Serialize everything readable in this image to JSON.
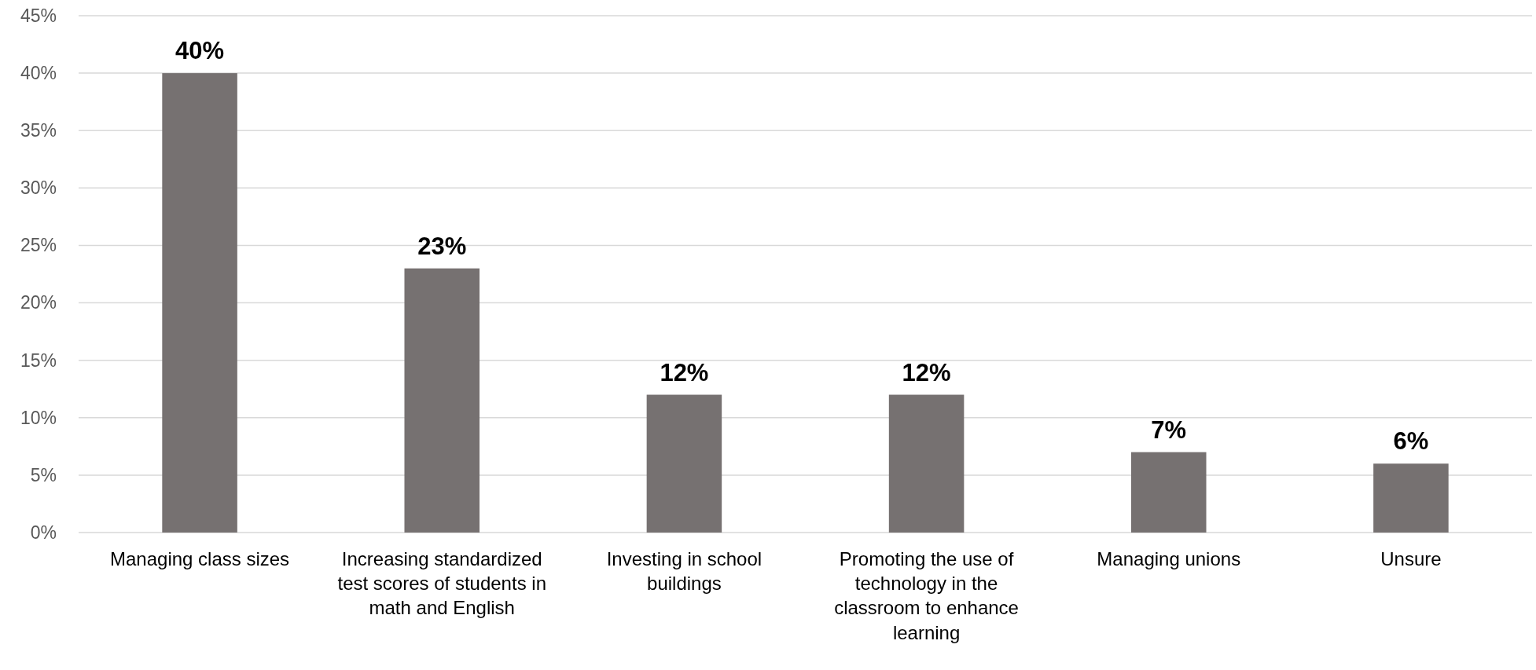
{
  "chart_data": {
    "type": "bar",
    "categories": [
      "Managing class sizes",
      "Increasing standardized test scores of students in math and English",
      "Investing in school buildings",
      "Promoting the use of technology in the classroom to enhance learning",
      "Managing unions",
      "Unsure"
    ],
    "values": [
      40,
      23,
      12,
      12,
      7,
      6
    ],
    "color": "#767171",
    "value_labels": [
      "40%",
      "23%",
      "12%",
      "12%",
      "7%",
      "6%"
    ],
    "ylim": [
      0,
      45
    ],
    "yticks": [
      {
        "value": 0,
        "label": "0%"
      },
      {
        "value": 5,
        "label": "5%"
      },
      {
        "value": 10,
        "label": "10%"
      },
      {
        "value": 15,
        "label": "15%"
      },
      {
        "value": 20,
        "label": "20%"
      },
      {
        "value": 25,
        "label": "25%"
      },
      {
        "value": 30,
        "label": "30%"
      },
      {
        "value": 35,
        "label": "35%"
      },
      {
        "value": 40,
        "label": "40%"
      },
      {
        "value": 45,
        "label": "45%"
      }
    ],
    "grid": "y"
  }
}
